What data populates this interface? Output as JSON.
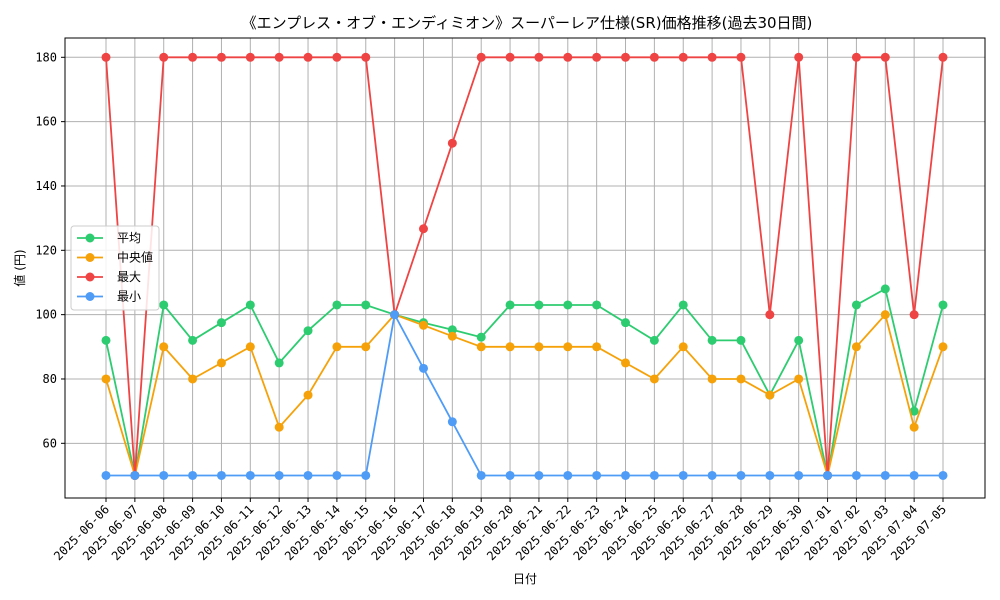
{
  "chart_data": {
    "type": "line",
    "title": "《エンプレス・オブ・エンディミオン》スーパーレア仕様(SR)価格推移(過去30日間)",
    "xlabel": "日付",
    "ylabel": "値 (円)",
    "ylim": [
      43,
      186
    ],
    "yticks": [
      60,
      80,
      100,
      120,
      140,
      160,
      180
    ],
    "grid": true,
    "legend_position": "center-left",
    "categories": [
      "2025-06-06",
      "2025-06-07",
      "2025-06-08",
      "2025-06-09",
      "2025-06-10",
      "2025-06-11",
      "2025-06-12",
      "2025-06-13",
      "2025-06-14",
      "2025-06-15",
      "2025-06-16",
      "2025-06-17",
      "2025-06-18",
      "2025-06-19",
      "2025-06-20",
      "2025-06-21",
      "2025-06-22",
      "2025-06-23",
      "2025-06-24",
      "2025-06-25",
      "2025-06-26",
      "2025-06-27",
      "2025-06-28",
      "2025-06-29",
      "2025-06-30",
      "2025-07-01",
      "2025-07-02",
      "2025-07-03",
      "2025-07-04",
      "2025-07-05"
    ],
    "series": [
      {
        "name": "平均",
        "color": "#2ecc71",
        "values": [
          92,
          50,
          103,
          92,
          97.5,
          103,
          85,
          95,
          103,
          103,
          100,
          97.5,
          95.3,
          93,
          103,
          103,
          103,
          103,
          97.5,
          92,
          103,
          92,
          92,
          75,
          92,
          50,
          103,
          108,
          70,
          103
        ]
      },
      {
        "name": "中央値",
        "color": "#f5a20a",
        "values": [
          80,
          50,
          90,
          80,
          85,
          90,
          65,
          75,
          90,
          90,
          100,
          96.7,
          93.3,
          90,
          90,
          90,
          90,
          90,
          85,
          80,
          90,
          80,
          80,
          75,
          80,
          50,
          90,
          100,
          65,
          90
        ]
      },
      {
        "name": "最大",
        "color": "#ef4444",
        "values": [
          180,
          50,
          180,
          180,
          180,
          180,
          180,
          180,
          180,
          180,
          100,
          126.7,
          153.3,
          180,
          180,
          180,
          180,
          180,
          180,
          180,
          180,
          180,
          180,
          100,
          180,
          50,
          180,
          180,
          100,
          180
        ]
      },
      {
        "name": "最小",
        "color": "#4f9cf7",
        "values": [
          50,
          50,
          50,
          50,
          50,
          50,
          50,
          50,
          50,
          50,
          100,
          83.3,
          66.7,
          50,
          50,
          50,
          50,
          50,
          50,
          50,
          50,
          50,
          50,
          50,
          50,
          50,
          50,
          50,
          50,
          50
        ]
      }
    ]
  }
}
